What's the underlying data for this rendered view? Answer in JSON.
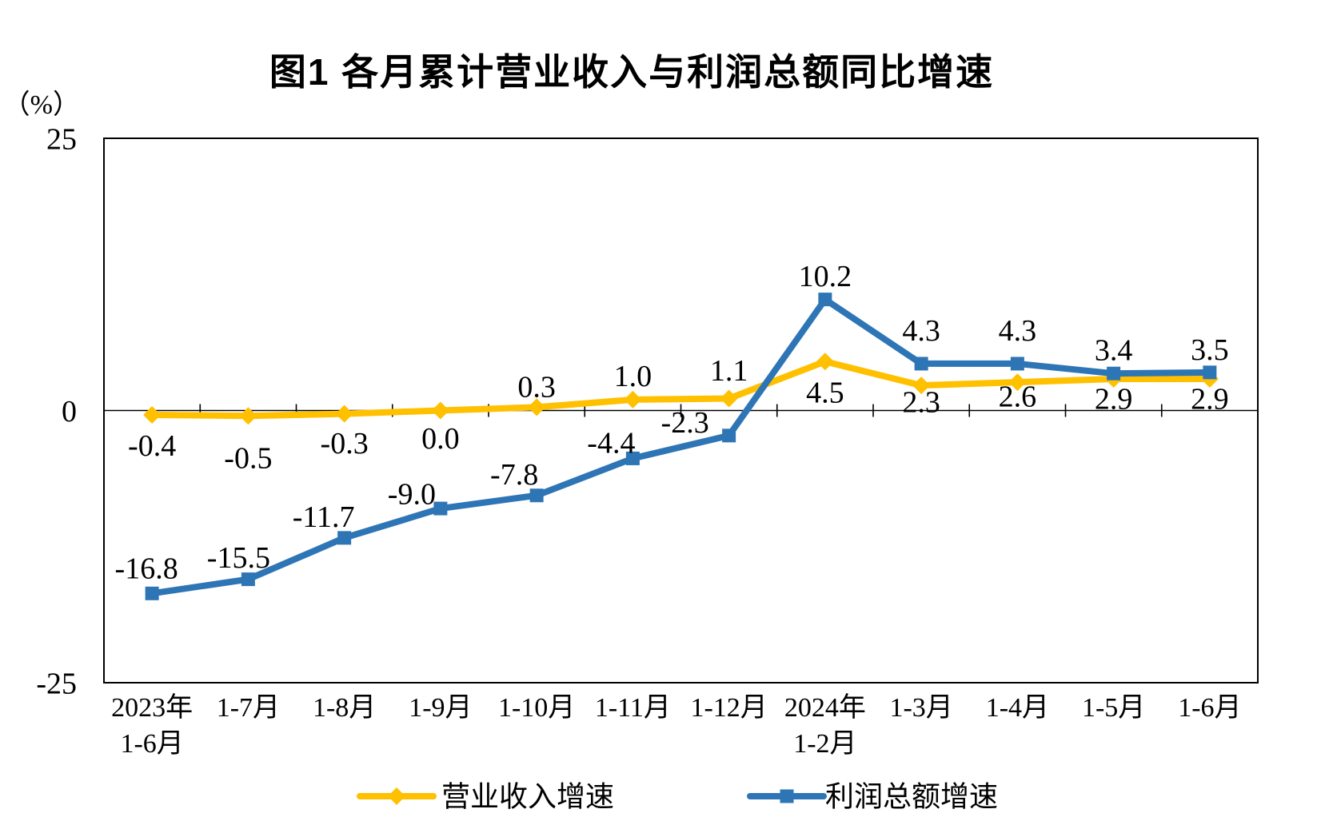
{
  "title": "图1 各月累计营业收入与利润总额同比增速",
  "chart_data": {
    "type": "line",
    "title": "图1 各月累计营业收入与利润总额同比增速",
    "unit_label": "（%）",
    "categories": [
      [
        "2023年",
        "1-6月"
      ],
      [
        "1-7月"
      ],
      [
        "1-8月"
      ],
      [
        "1-9月"
      ],
      [
        "1-10月"
      ],
      [
        "1-11月"
      ],
      [
        "1-12月"
      ],
      [
        "2024年",
        "1-2月"
      ],
      [
        "1-3月"
      ],
      [
        "1-4月"
      ],
      [
        "1-5月"
      ],
      [
        "1-6月"
      ]
    ],
    "series": [
      {
        "name": "营业收入增速",
        "color": "#FFC000",
        "marker": "diamond",
        "values": [
          -0.4,
          -0.5,
          -0.3,
          0.0,
          0.3,
          1.0,
          1.1,
          4.5,
          2.3,
          2.6,
          2.9,
          2.9
        ],
        "label_side": [
          "below",
          "below",
          "below",
          "below",
          "above",
          "above",
          "above",
          "below",
          "below",
          "below",
          "below",
          "below"
        ]
      },
      {
        "name": "利润总额增速",
        "color": "#2E75B6",
        "marker": "square",
        "values": [
          -16.8,
          -15.5,
          -11.7,
          -9.0,
          -7.8,
          -4.4,
          -2.3,
          10.2,
          4.3,
          4.3,
          3.4,
          3.5
        ],
        "label_side": [
          "above",
          "above",
          "above",
          "above",
          "above",
          "above",
          "above",
          "above",
          "above",
          "above",
          "above",
          "above"
        ]
      }
    ],
    "ylim": [
      -25,
      25
    ],
    "yticks": [
      25,
      0,
      -25
    ],
    "grid": false,
    "legend_position": "bottom",
    "axis_color": "#000000"
  }
}
